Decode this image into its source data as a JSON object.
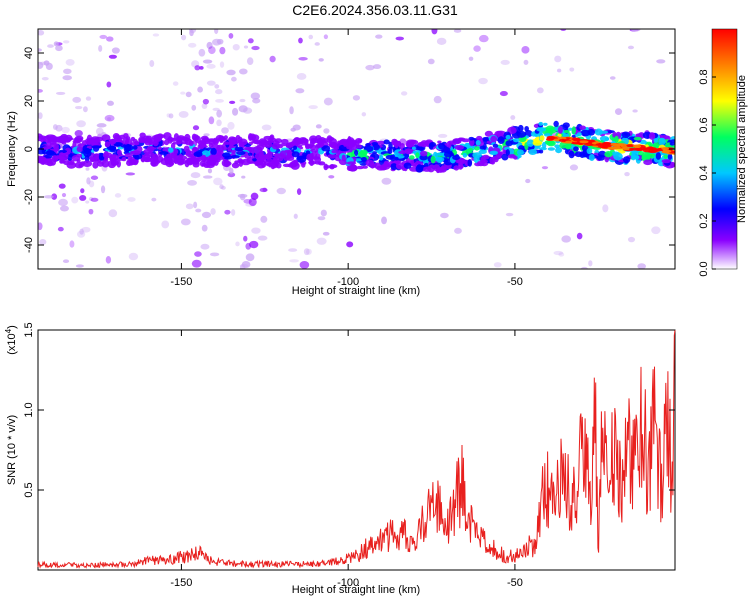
{
  "title": "C2E6.2024.356.03.11.G31",
  "chart_data": [
    {
      "type": "heatmap",
      "xlabel": "Height of straight line (km)",
      "ylabel": "Frequency (Hz)",
      "xlim": [
        -193,
        -2
      ],
      "ylim": [
        -50,
        50
      ],
      "x_ticks": [
        -150,
        -100,
        -50
      ],
      "x_tick_labels": [
        "-150",
        "-100",
        "-50"
      ],
      "y_ticks": [
        -40,
        -20,
        0,
        20,
        40
      ],
      "y_tick_labels": [
        "-40",
        "-20",
        "0",
        "20",
        "40"
      ],
      "colorbar": {
        "label": "Normalized spectral amplitude",
        "range": [
          0,
          1
        ],
        "ticks": [
          0.0,
          0.2,
          0.4,
          0.6,
          0.8
        ],
        "tick_labels": [
          "0.0",
          "0.2",
          "0.4",
          "0.6",
          "0.8"
        ],
        "colormap": "rainbow",
        "colors": [
          "#ffffff",
          "#8a00ff",
          "#0000ff",
          "#00c8ff",
          "#00ff60",
          "#ffff00",
          "#ff8000",
          "#ff0000"
        ]
      },
      "ridge": {
        "x": [
          -193,
          -180,
          -160,
          -140,
          -120,
          -100,
          -80,
          -70,
          -60,
          -50,
          -45,
          -40,
          -30,
          -20,
          -10,
          -2
        ],
        "y": [
          0,
          -1,
          0,
          -1,
          -1,
          -2,
          -3,
          -3,
          0,
          2,
          4,
          5,
          3,
          1,
          0,
          -1
        ]
      }
    },
    {
      "type": "line",
      "xlabel": "Height of straight line (km)",
      "ylabel": "SNR (10 * v/v)",
      "scale_label_base": "(x10",
      "scale_label_exp": "4",
      "scale_label_end": ")",
      "xlim": [
        -193,
        -2
      ],
      "ylim": [
        0,
        15000
      ],
      "x_ticks": [
        -150,
        -100,
        -50
      ],
      "x_tick_labels": [
        "-150",
        "-100",
        "-50"
      ],
      "y_ticks": [
        5000,
        10000,
        15000
      ],
      "y_tick_labels": [
        "0.5",
        "1.0",
        "1.5"
      ],
      "color": "#e8201e",
      "series": [
        {
          "x": [
            -193,
            -180,
            -165,
            -160,
            -152,
            -148,
            -145,
            -142,
            -138,
            -130,
            -120,
            -110,
            -105,
            -100,
            -97,
            -95,
            -92,
            -90,
            -88,
            -85,
            -82,
            -80,
            -78,
            -76,
            -74,
            -72,
            -70,
            -68,
            -66,
            -64,
            -62,
            -60,
            -58,
            -55,
            -52,
            -50,
            -48,
            -46,
            -45,
            -44,
            -43,
            -42,
            -40,
            -38,
            -36,
            -34,
            -32,
            -30,
            -28,
            -27,
            -26,
            -25,
            -24,
            -22,
            -20,
            -18,
            -16,
            -14,
            -12,
            -10,
            -8,
            -6,
            -4,
            -3,
            -2
          ],
          "y": [
            500,
            400,
            500,
            800,
            1000,
            1200,
            1500,
            900,
            600,
            500,
            500,
            500,
            600,
            1000,
            1200,
            1800,
            2000,
            2500,
            2800,
            3500,
            2500,
            2000,
            3500,
            5000,
            6500,
            4500,
            3500,
            5500,
            8000,
            4500,
            3000,
            2500,
            2000,
            1500,
            1200,
            1200,
            1300,
            1800,
            2500,
            1700,
            5000,
            6000,
            7000,
            5500,
            9000,
            7000,
            6000,
            10000,
            8000,
            7500,
            13500,
            2000,
            10000,
            9000,
            9500,
            8000,
            11000,
            8500,
            12000,
            9000,
            12500,
            7000,
            13000,
            9000,
            14500
          ]
        }
      ]
    }
  ]
}
